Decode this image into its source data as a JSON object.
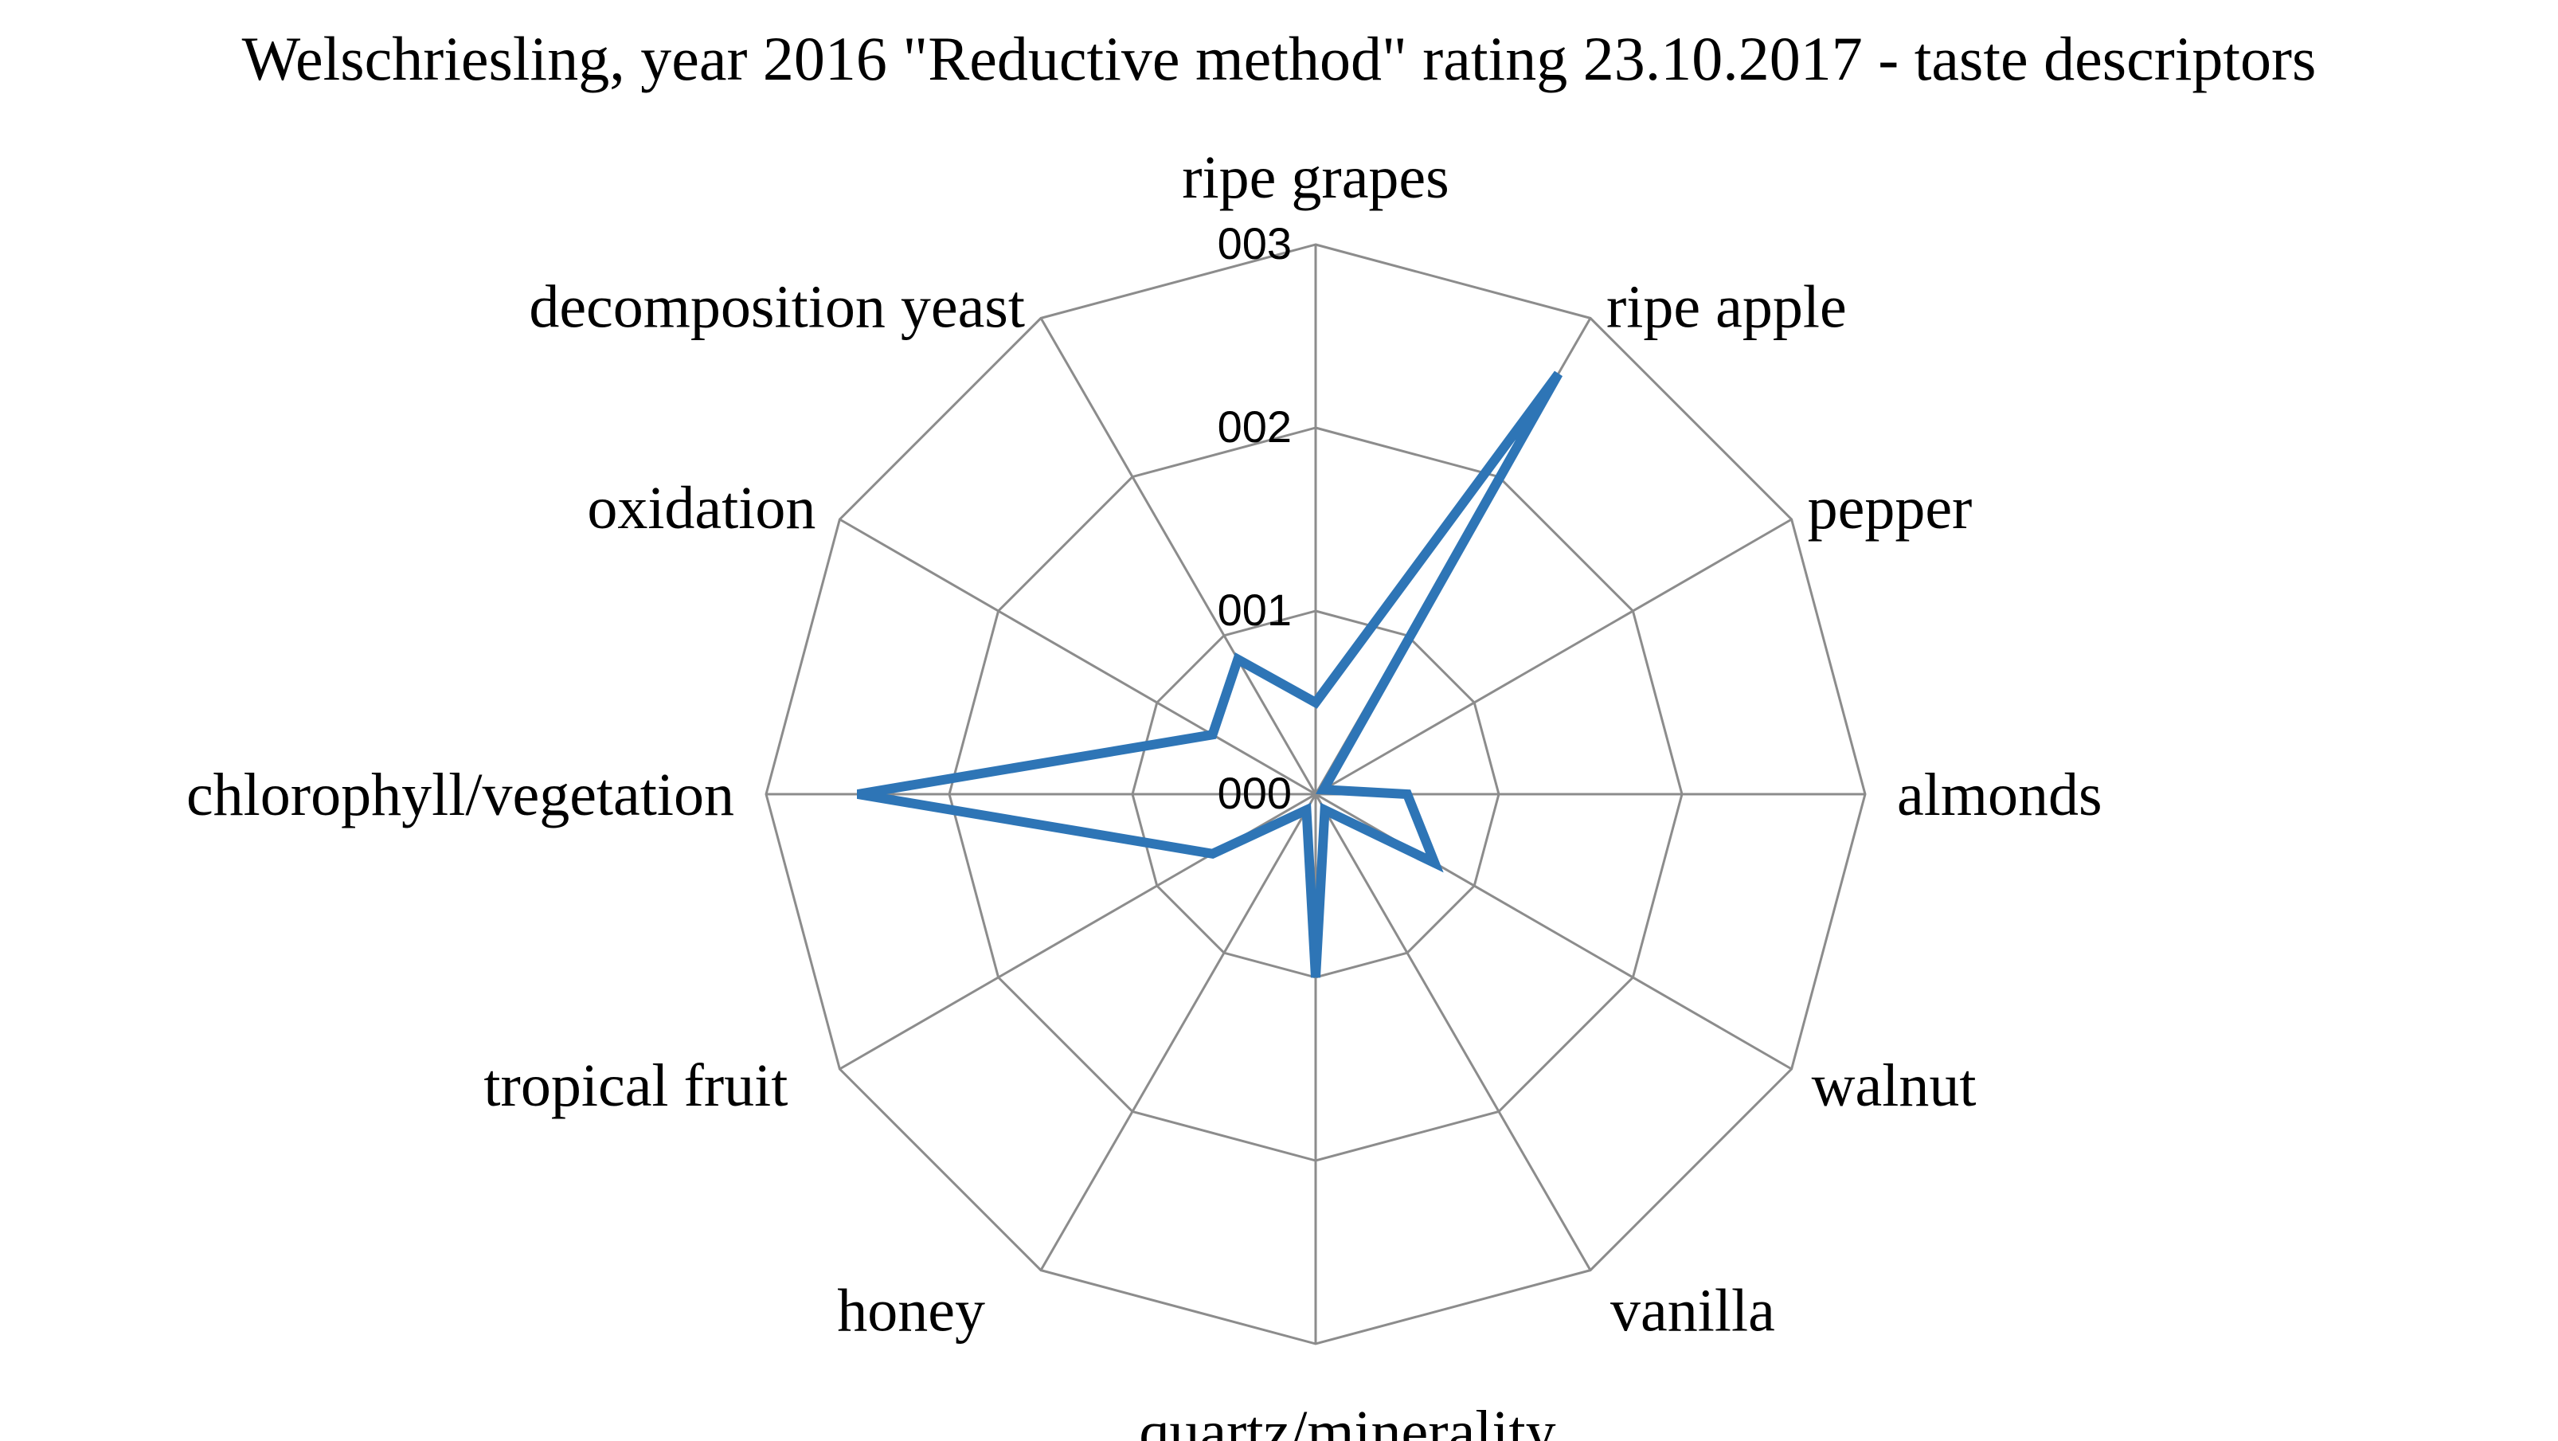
{
  "chart_data": {
    "type": "radar",
    "title": "Welschriesling, year 2016 \"Reductive method\" rating 23.10.2017 - taste descriptors",
    "categories": [
      "ripe grapes",
      "ripe apple",
      "pepper",
      "almonds",
      "walnut",
      "vanilla",
      "quartz/minerality",
      "honey",
      "tropical fruit",
      "chlorophyll/vegetation",
      "oxidation",
      "decomposition yeast"
    ],
    "tick_labels": [
      "000",
      "001",
      "002",
      "003"
    ],
    "rlim": [
      0,
      3
    ],
    "grid": true,
    "legend": "none",
    "series": [
      {
        "color": "#2e75b6",
        "values": [
          0.5,
          2.65,
          0.05,
          0.5,
          0.75,
          0.1,
          1.0,
          0.1,
          0.65,
          2.5,
          0.65,
          0.85
        ]
      }
    ]
  }
}
